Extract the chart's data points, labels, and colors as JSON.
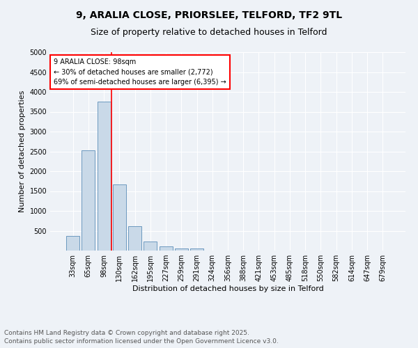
{
  "title_line1": "9, ARALIA CLOSE, PRIORSLEE, TELFORD, TF2 9TL",
  "title_line2": "Size of property relative to detached houses in Telford",
  "xlabel": "Distribution of detached houses by size in Telford",
  "ylabel": "Number of detached properties",
  "categories": [
    "33sqm",
    "65sqm",
    "98sqm",
    "130sqm",
    "162sqm",
    "195sqm",
    "227sqm",
    "259sqm",
    "291sqm",
    "324sqm",
    "356sqm",
    "388sqm",
    "421sqm",
    "453sqm",
    "485sqm",
    "518sqm",
    "550sqm",
    "582sqm",
    "614sqm",
    "647sqm",
    "679sqm"
  ],
  "values": [
    375,
    2530,
    3760,
    1660,
    620,
    225,
    100,
    50,
    50,
    0,
    0,
    0,
    0,
    0,
    0,
    0,
    0,
    0,
    0,
    0,
    0
  ],
  "bar_color": "#c9d9e8",
  "bar_edge_color": "#5b8db8",
  "red_line_index": 2,
  "annotation_text": "9 ARALIA CLOSE: 98sqm\n← 30% of detached houses are smaller (2,772)\n69% of semi-detached houses are larger (6,395) →",
  "annotation_box_color": "white",
  "annotation_box_edge_color": "red",
  "red_line_color": "red",
  "ylim": [
    0,
    5000
  ],
  "yticks": [
    0,
    500,
    1000,
    1500,
    2000,
    2500,
    3000,
    3500,
    4000,
    4500,
    5000
  ],
  "footer_line1": "Contains HM Land Registry data © Crown copyright and database right 2025.",
  "footer_line2": "Contains public sector information licensed under the Open Government Licence v3.0.",
  "background_color": "#eef2f7",
  "grid_color": "#ffffff",
  "title_fontsize": 10,
  "subtitle_fontsize": 9,
  "axis_label_fontsize": 8,
  "tick_fontsize": 7,
  "annotation_fontsize": 7,
  "footer_fontsize": 6.5
}
